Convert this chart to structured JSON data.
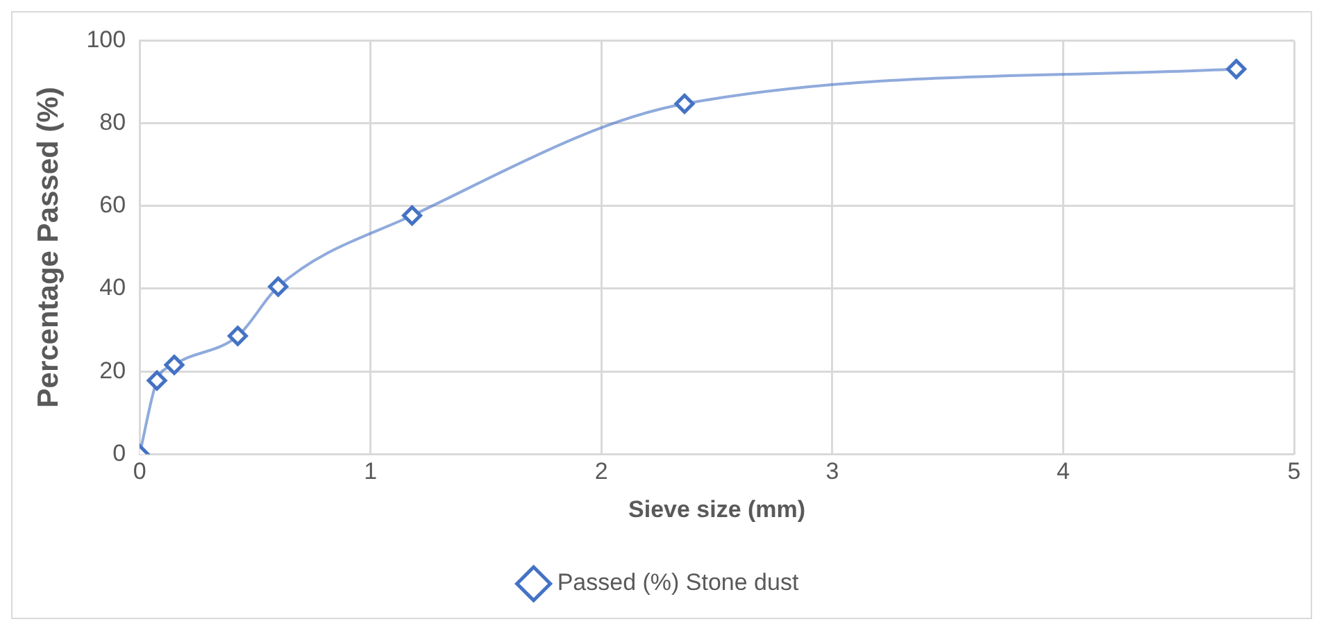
{
  "chart_data": {
    "type": "line",
    "xlabel": "Sieve size (mm)",
    "ylabel": "Percentage Passed (%)",
    "x": [
      0,
      0.075,
      0.15,
      0.425,
      0.6,
      1.18,
      2.36,
      4.75
    ],
    "series": [
      {
        "name": "Passed (%) Stone dust",
        "color": "#4472c4",
        "values": [
          0,
          17.8,
          21.6,
          28.6,
          40.5,
          57.7,
          84.7,
          93.1
        ]
      }
    ],
    "xlim": [
      0,
      5
    ],
    "xticks": [
      0,
      1,
      2,
      3,
      4,
      5
    ],
    "ylim": [
      0,
      100
    ],
    "yticks": [
      0,
      20,
      40,
      60,
      80,
      100
    ],
    "grid": true,
    "legend": "bottom",
    "marker": "diamond",
    "line_style": "solid"
  }
}
